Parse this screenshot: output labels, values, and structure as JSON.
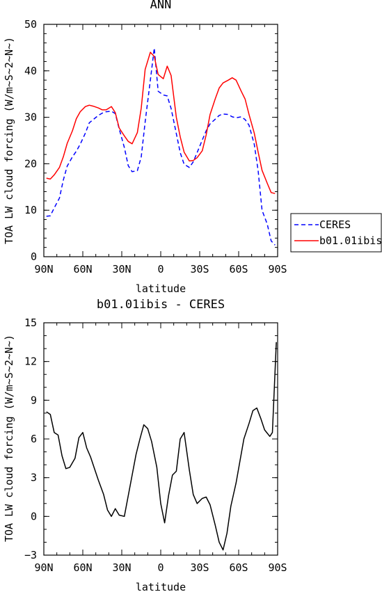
{
  "chart_data": [
    {
      "type": "line",
      "title": "ANN",
      "xlabel": "latitude",
      "ylabel": "TOA LW cloud forcing (W/m~S~2~N~)",
      "xlim": [
        90,
        -90
      ],
      "ylim": [
        0,
        50
      ],
      "xticks": [
        90,
        60,
        30,
        0,
        -30,
        -60,
        -90
      ],
      "xtick_labels": [
        "90N",
        "60N",
        "30N",
        "0",
        "30S",
        "60S",
        "90S"
      ],
      "yticks": [
        0,
        10,
        20,
        30,
        40,
        50
      ],
      "ytick_labels": [
        "0",
        "10",
        "20",
        "30",
        "40",
        "50"
      ],
      "legend_position": "right",
      "series": [
        {
          "name": "CERES",
          "color": "#0000ff",
          "dash": "dashed",
          "x": [
            88,
            85,
            82,
            78,
            75,
            72,
            68,
            65,
            62,
            58,
            55,
            52,
            48,
            45,
            42,
            38,
            35,
            32,
            28,
            25,
            22,
            18,
            15,
            12,
            8,
            5,
            2,
            -2,
            -5,
            -8,
            -12,
            -15,
            -18,
            -22,
            -25,
            -28,
            -32,
            -35,
            -38,
            -42,
            -45,
            -48,
            -52,
            -55,
            -58,
            -62,
            -65,
            -68,
            -72,
            -75,
            -78,
            -82,
            -85,
            -88
          ],
          "y": [
            8.7,
            8.8,
            10.5,
            12.6,
            16.5,
            19.5,
            21.5,
            22.7,
            24.2,
            26.6,
            28.8,
            29.5,
            30.4,
            30.9,
            31.2,
            31.3,
            30.8,
            27.5,
            23.5,
            19.6,
            18.3,
            18.5,
            21.5,
            29.0,
            38.0,
            44.9,
            35.6,
            34.8,
            34.6,
            31.9,
            26.5,
            22.4,
            19.9,
            19.2,
            20.4,
            22.4,
            25.1,
            27.1,
            28.6,
            29.6,
            30.4,
            30.7,
            30.6,
            30.1,
            29.9,
            30.1,
            29.5,
            28.3,
            24.2,
            18.5,
            10.0,
            7.0,
            3.4,
            2.5
          ]
        },
        {
          "name": "b01.01ibis",
          "color": "#ff0000",
          "dash": "solid",
          "x": [
            88,
            85,
            82,
            78,
            75,
            72,
            68,
            65,
            62,
            58,
            55,
            52,
            48,
            45,
            42,
            38,
            35,
            32,
            28,
            25,
            22,
            18,
            15,
            12,
            8,
            5,
            2,
            -2,
            -5,
            -8,
            -12,
            -15,
            -18,
            -22,
            -25,
            -28,
            -32,
            -35,
            -38,
            -42,
            -45,
            -48,
            -52,
            -55,
            -58,
            -62,
            -65,
            -68,
            -72,
            -75,
            -78,
            -82,
            -85,
            -88
          ],
          "y": [
            16.9,
            16.7,
            17.6,
            19.2,
            21.5,
            24.4,
            27.1,
            29.7,
            31.2,
            32.3,
            32.6,
            32.4,
            32.0,
            31.6,
            31.6,
            32.3,
            31.0,
            27.7,
            26.0,
            24.8,
            24.3,
            26.7,
            32.0,
            40.3,
            44.0,
            43.1,
            39.2,
            38.3,
            41.0,
            39.0,
            30.0,
            25.8,
            22.5,
            20.6,
            20.7,
            21.3,
            22.8,
            26.2,
            30.6,
            34.0,
            36.3,
            37.4,
            38.0,
            38.5,
            38.0,
            35.6,
            33.9,
            30.6,
            26.6,
            22.5,
            18.6,
            15.8,
            13.8,
            13.6
          ]
        }
      ]
    },
    {
      "type": "line",
      "title": "b01.01ibis - CERES",
      "xlabel": "latitude",
      "ylabel": "TOA LW cloud forcing (W/m~S~2~N~)",
      "xlim": [
        90,
        -90
      ],
      "ylim": [
        -3,
        15
      ],
      "xticks": [
        90,
        60,
        30,
        0,
        -30,
        -60,
        -90
      ],
      "xtick_labels": [
        "90N",
        "60N",
        "30N",
        "0",
        "30S",
        "60S",
        "90S"
      ],
      "yticks": [
        -3,
        0,
        3,
        6,
        9,
        12,
        15
      ],
      "ytick_labels": [
        "−3",
        "0",
        "3",
        "6",
        "9",
        "12",
        "15"
      ],
      "series": [
        {
          "color": "#000000",
          "dash": "solid",
          "x": [
            88,
            85,
            82,
            79,
            76,
            73,
            70,
            66,
            63,
            60,
            57,
            54,
            51,
            48,
            44,
            41,
            38,
            35,
            32,
            28,
            25,
            22,
            19,
            16,
            13,
            10,
            7,
            3,
            0,
            -3,
            -6,
            -9,
            -12,
            -15,
            -18,
            -22,
            -25,
            -28,
            -32,
            -35,
            -38,
            -42,
            -45,
            -48,
            -51,
            -54,
            -58,
            -61,
            -64,
            -68,
            -71,
            -74,
            -77,
            -80,
            -84,
            -86,
            -89
          ],
          "y": [
            8.1,
            7.9,
            6.5,
            6.3,
            4.7,
            3.7,
            3.8,
            4.5,
            6.1,
            6.5,
            5.3,
            4.6,
            3.7,
            2.8,
            1.7,
            0.5,
            0.0,
            0.6,
            0.1,
            0.0,
            1.6,
            3.2,
            4.8,
            6.0,
            7.1,
            6.8,
            5.8,
            3.8,
            1.0,
            -0.5,
            1.6,
            3.2,
            3.5,
            6.0,
            6.5,
            3.6,
            1.7,
            1.0,
            1.4,
            1.5,
            0.9,
            -0.7,
            -2.0,
            -2.6,
            -1.3,
            0.8,
            2.6,
            4.3,
            6.0,
            7.2,
            8.2,
            8.4,
            7.6,
            6.7,
            6.2,
            6.5,
            13.5
          ]
        }
      ]
    }
  ],
  "legend": {
    "items": [
      {
        "label": "CERES",
        "color": "#0000ff",
        "dash": "dashed"
      },
      {
        "label": "b01.01ibis",
        "color": "#ff0000",
        "dash": "solid"
      }
    ]
  }
}
